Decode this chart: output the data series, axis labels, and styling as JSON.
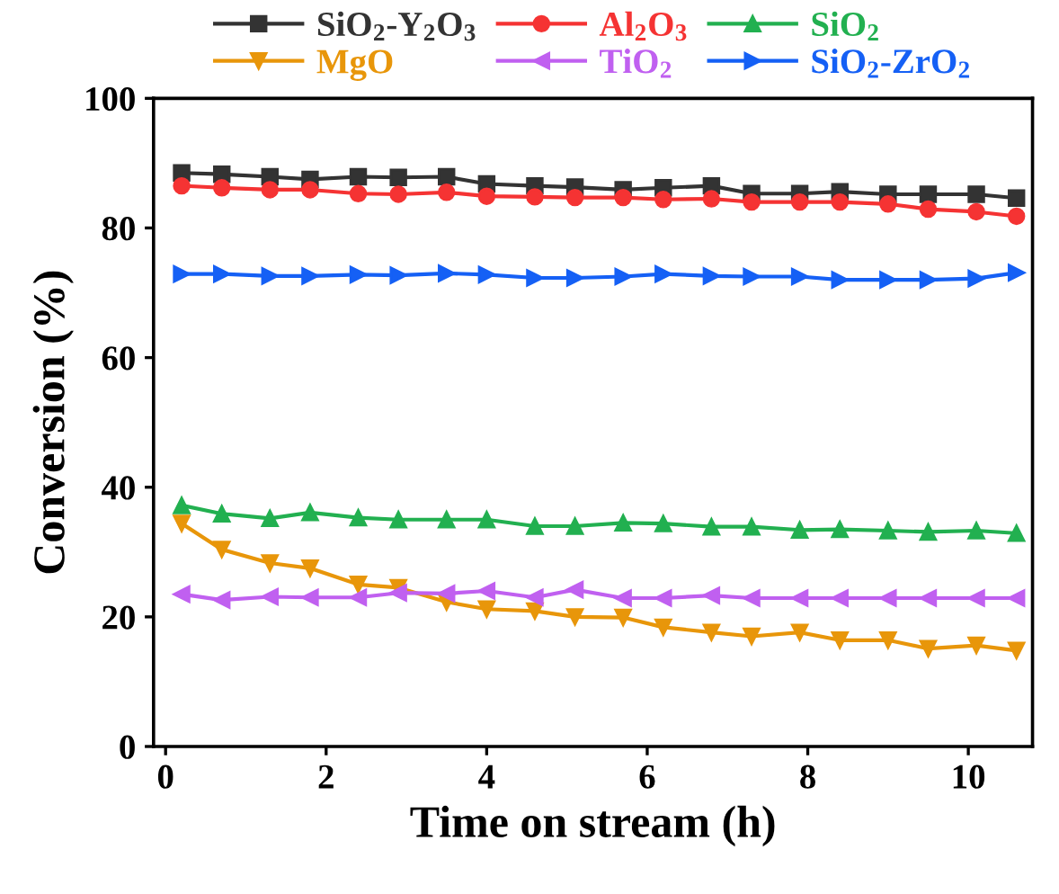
{
  "chart_data": {
    "type": "line",
    "xlabel": "Time on stream (h)",
    "ylabel": "Conversion (%)",
    "x": [
      0.2,
      0.7,
      1.3,
      1.8,
      2.4,
      2.9,
      3.5,
      4.0,
      4.6,
      5.1,
      5.7,
      6.2,
      6.8,
      7.3,
      7.9,
      8.4,
      9.0,
      9.5,
      10.1,
      10.6
    ],
    "series": [
      {
        "name": "SiO$_{2}$-Y$_{2}$O$_{3}$",
        "color": "#333333",
        "marker": "square",
        "values": [
          88.5,
          88.3,
          87.9,
          87.5,
          87.9,
          87.8,
          87.9,
          86.8,
          86.5,
          86.3,
          85.9,
          86.2,
          86.5,
          85.3,
          85.3,
          85.6,
          85.2,
          85.2,
          85.2,
          84.6
        ]
      },
      {
        "name": "Al$_{2}$O$_{3}$",
        "color": "#f53333",
        "marker": "circle",
        "values": [
          86.5,
          86.2,
          85.9,
          85.9,
          85.3,
          85.2,
          85.5,
          84.9,
          84.8,
          84.7,
          84.7,
          84.4,
          84.5,
          84.0,
          84.0,
          84.0,
          83.7,
          82.9,
          82.5,
          81.8
        ]
      },
      {
        "name": "SiO$_{2}$",
        "color": "#22b050",
        "marker": "triangle",
        "values": [
          37.2,
          35.9,
          35.2,
          36.1,
          35.3,
          35.0,
          35.0,
          35.0,
          34.0,
          34.0,
          34.5,
          34.4,
          33.9,
          33.9,
          33.4,
          33.5,
          33.3,
          33.1,
          33.3,
          32.9
        ]
      },
      {
        "name": "MgO",
        "color": "#e8960a",
        "marker": "triangle_down",
        "values": [
          34.4,
          30.4,
          28.3,
          27.5,
          25.0,
          24.5,
          22.3,
          21.2,
          20.9,
          20.0,
          19.9,
          18.4,
          17.6,
          17.0,
          17.6,
          16.4,
          16.4,
          15.1,
          15.6,
          14.8
        ]
      },
      {
        "name": "TiO$_{2}$",
        "color": "#c060f0",
        "marker": "triangle_left",
        "values": [
          23.5,
          22.6,
          23.1,
          23.0,
          23.0,
          23.7,
          23.6,
          24.0,
          23.0,
          24.2,
          22.9,
          22.9,
          23.3,
          22.9,
          22.9,
          22.9,
          22.9,
          22.9,
          22.9,
          22.9
        ]
      },
      {
        "name": "SiO$_{2}$-ZrO$_{2}$",
        "color": "#1560f5",
        "marker": "triangle_right",
        "values": [
          72.9,
          72.9,
          72.6,
          72.6,
          72.8,
          72.7,
          73.0,
          72.8,
          72.3,
          72.3,
          72.5,
          72.9,
          72.6,
          72.5,
          72.5,
          72.0,
          72.0,
          72.0,
          72.2,
          73.1
        ]
      }
    ],
    "xlim": [
      -0.15,
      10.8
    ],
    "ylim": [
      0,
      100
    ],
    "xticks": [
      0,
      2,
      4,
      6,
      8,
      10
    ],
    "yticks": [
      0,
      20,
      40,
      60,
      80,
      100
    ],
    "grid": false,
    "legend": "top",
    "line_style": "solid"
  }
}
